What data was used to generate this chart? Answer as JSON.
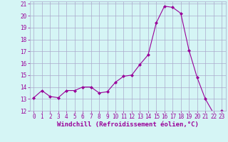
{
  "x": [
    0,
    1,
    2,
    3,
    4,
    5,
    6,
    7,
    8,
    9,
    10,
    11,
    12,
    13,
    14,
    15,
    16,
    17,
    18,
    19,
    20,
    21,
    22,
    23
  ],
  "y": [
    13.1,
    13.7,
    13.2,
    13.1,
    13.7,
    13.7,
    14.0,
    14.0,
    13.5,
    13.6,
    14.4,
    14.9,
    15.0,
    15.9,
    16.7,
    19.4,
    20.8,
    20.7,
    20.2,
    17.1,
    14.8,
    13.0,
    11.8,
    12.0
  ],
  "line_color": "#990099",
  "marker": "D",
  "marker_size": 2,
  "bg_color": "#d5f5f5",
  "grid_color": "#aaaacc",
  "xlabel": "Windchill (Refroidissement éolien,°C)",
  "xlabel_color": "#990099",
  "ylim": [
    12,
    21
  ],
  "xlim_min": -0.5,
  "xlim_max": 23.5,
  "yticks": [
    12,
    13,
    14,
    15,
    16,
    17,
    18,
    19,
    20,
    21
  ],
  "xticks": [
    0,
    1,
    2,
    3,
    4,
    5,
    6,
    7,
    8,
    9,
    10,
    11,
    12,
    13,
    14,
    15,
    16,
    17,
    18,
    19,
    20,
    21,
    22,
    23
  ],
  "tick_color": "#990099",
  "tick_fontsize": 5.5,
  "xlabel_fontsize": 6.5
}
